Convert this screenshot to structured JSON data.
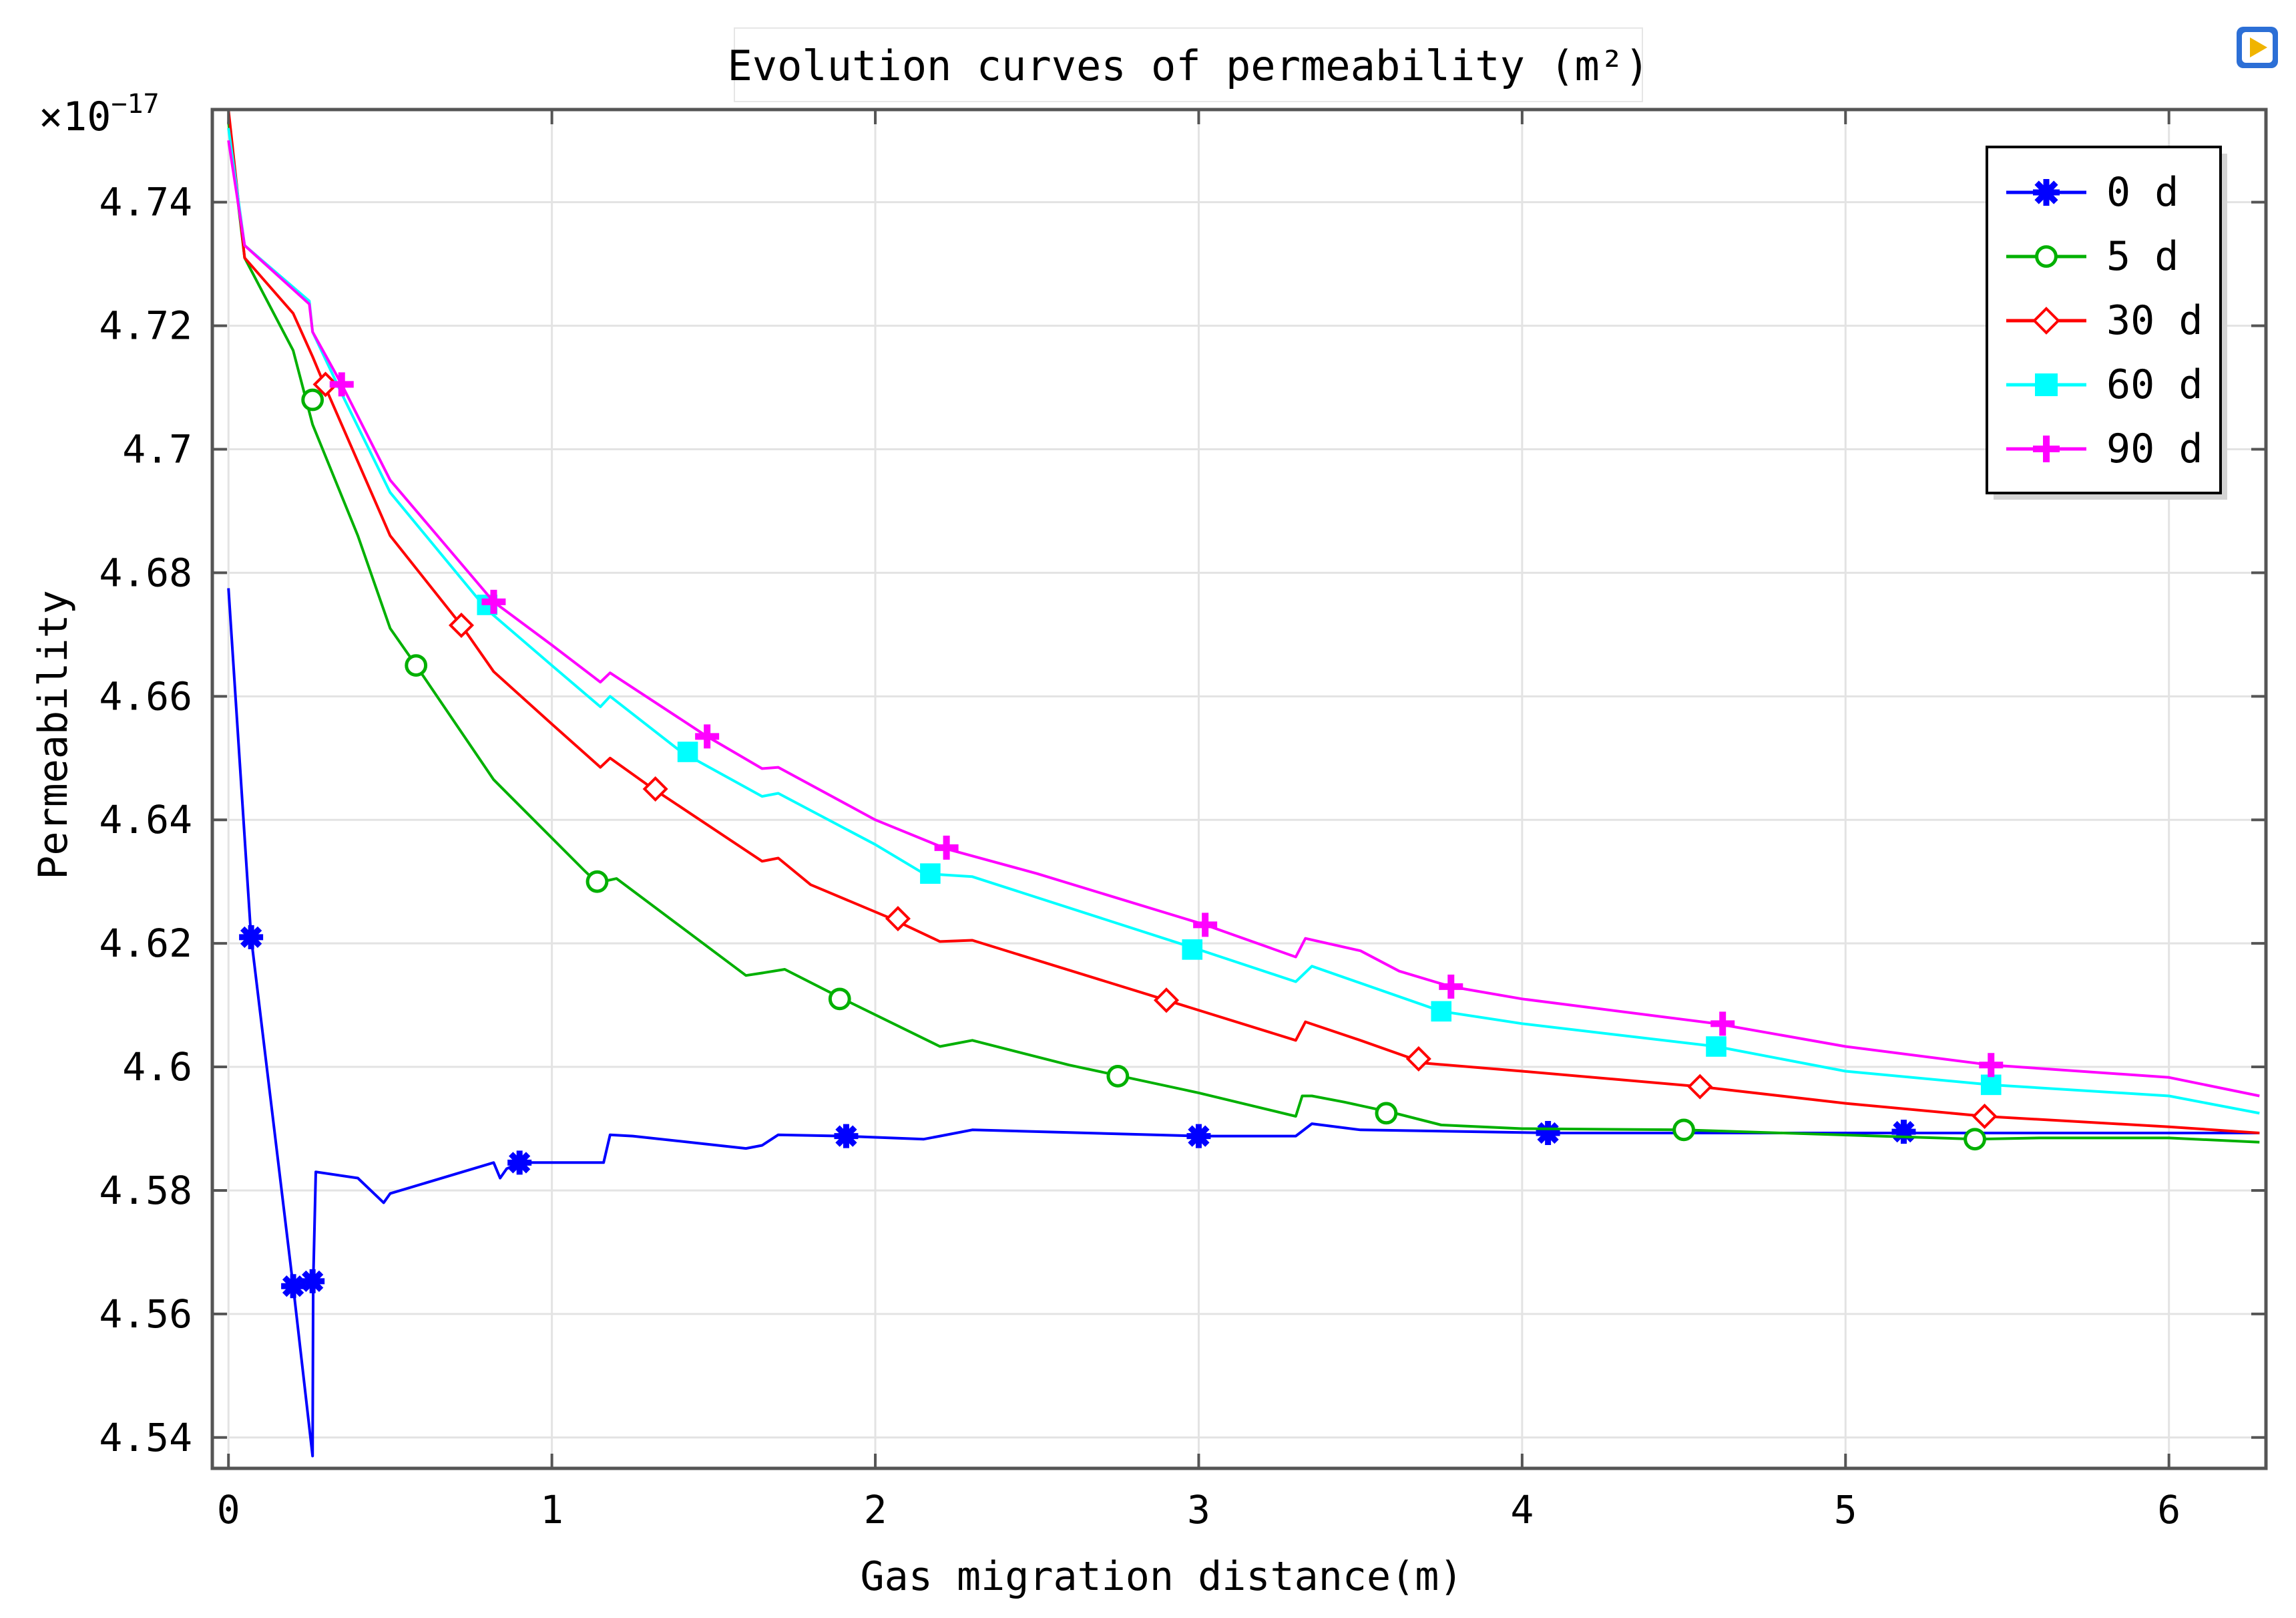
{
  "chart_data": {
    "type": "line",
    "title": "Evolution curves of permeability (m²)",
    "xlabel": "Gas migration distance(m)",
    "ylabel": "Permeability",
    "exponent_label": "×10",
    "exponent_power": "−17",
    "xlim": [
      -0.05,
      6.3
    ],
    "ylim": [
      4.535,
      4.755
    ],
    "xticks": [
      0,
      1,
      2,
      3,
      4,
      5,
      6
    ],
    "xtick_labels": [
      "0",
      "1",
      "2",
      "3",
      "4",
      "5",
      "6"
    ],
    "yticks": [
      4.54,
      4.56,
      4.58,
      4.6,
      4.62,
      4.64,
      4.66,
      4.68,
      4.7,
      4.72,
      4.74
    ],
    "ytick_labels": [
      "4.54",
      "4.56",
      "4.58",
      "4.6",
      "4.62",
      "4.64",
      "4.66",
      "4.68",
      "4.7",
      "4.72",
      "4.74"
    ],
    "grid": true,
    "legend_position": "top-right",
    "series": [
      {
        "name": "0 d",
        "color": "#0000ff",
        "marker": "asterisk",
        "x": [
          0.0,
          0.07,
          0.2,
          0.26,
          0.262,
          0.27,
          0.4,
          0.48,
          0.5,
          0.82,
          0.84,
          0.86,
          0.9,
          1.1,
          1.16,
          1.18,
          1.25,
          1.6,
          1.65,
          1.7,
          1.9,
          2.15,
          2.2,
          2.3,
          3.0,
          3.3,
          3.35,
          3.5,
          4.1,
          5.2,
          5.5,
          6.0,
          6.28
        ],
        "y": [
          4.6775,
          4.621,
          4.5645,
          4.537,
          4.565,
          4.583,
          4.582,
          4.578,
          4.5795,
          4.5845,
          4.582,
          4.5835,
          4.5845,
          4.5845,
          4.5845,
          4.589,
          4.5888,
          4.5868,
          4.5873,
          4.589,
          4.5888,
          4.5883,
          4.5888,
          4.5898,
          4.5888,
          4.5888,
          4.5908,
          4.5898,
          4.5893,
          4.5893,
          4.5893,
          4.5893,
          4.5893
        ],
        "marker_x": [
          0.07,
          0.2,
          0.26,
          0.9,
          1.91,
          3.0,
          4.08,
          5.18
        ],
        "marker_y": [
          4.621,
          4.5645,
          4.5653,
          4.5845,
          4.5888,
          4.5888,
          4.5893,
          4.5895
        ]
      },
      {
        "name": "5 d",
        "color": "#00b000",
        "marker": "circle",
        "x": [
          0.0,
          0.05,
          0.2,
          0.26,
          0.4,
          0.5,
          0.58,
          0.82,
          1.1,
          1.14,
          1.2,
          1.6,
          1.65,
          1.72,
          1.9,
          2.2,
          2.3,
          2.6,
          3.0,
          3.3,
          3.32,
          3.35,
          3.45,
          3.6,
          3.75,
          4.0,
          4.5,
          5.4,
          5.6,
          6.0,
          6.28
        ],
        "y": [
          4.753,
          4.731,
          4.716,
          4.704,
          4.686,
          4.671,
          4.665,
          4.6465,
          4.6318,
          4.6298,
          4.6305,
          4.6148,
          4.6152,
          4.6158,
          4.611,
          4.6033,
          4.6043,
          4.6003,
          4.5958,
          4.592,
          4.5953,
          4.5953,
          4.5943,
          4.5926,
          4.5906,
          4.59,
          4.5898,
          4.5883,
          4.5885,
          4.5885,
          4.5878
        ],
        "marker_x": [
          0.26,
          0.58,
          1.14,
          1.89,
          2.75,
          3.58,
          4.5,
          5.4
        ],
        "marker_y": [
          4.708,
          4.665,
          4.63,
          4.611,
          4.5985,
          4.5925,
          4.5898,
          4.5883
        ]
      },
      {
        "name": "30 d",
        "color": "#ff0000",
        "marker": "diamond",
        "x": [
          0.0,
          0.05,
          0.2,
          0.26,
          0.3,
          0.5,
          0.72,
          0.82,
          1.0,
          1.15,
          1.18,
          1.3,
          1.65,
          1.7,
          1.8,
          2.05,
          2.2,
          2.3,
          2.9,
          3.3,
          3.33,
          3.5,
          3.7,
          4.0,
          4.55,
          5.0,
          5.43,
          6.0,
          6.28
        ],
        "y": [
          4.755,
          4.731,
          4.722,
          4.715,
          4.71,
          4.686,
          4.6715,
          4.664,
          4.6555,
          4.6485,
          4.65,
          4.6455,
          4.6333,
          4.6338,
          4.6295,
          4.624,
          4.6203,
          4.6205,
          4.6108,
          4.6043,
          4.6073,
          4.6043,
          4.6006,
          4.5993,
          4.5968,
          4.5941,
          4.592,
          4.5903,
          4.5893
        ],
        "marker_x": [
          0.3,
          0.72,
          1.32,
          2.07,
          2.9,
          3.68,
          4.55,
          5.43
        ],
        "marker_y": [
          4.7105,
          4.6715,
          4.645,
          4.624,
          4.6108,
          4.6013,
          4.5968,
          4.592
        ]
      },
      {
        "name": "60 d",
        "color": "#00ffff",
        "marker": "square",
        "x": [
          0.0,
          0.05,
          0.25,
          0.26,
          0.35,
          0.5,
          0.8,
          1.0,
          1.15,
          1.18,
          1.4,
          1.65,
          1.7,
          2.0,
          2.15,
          2.3,
          3.0,
          3.3,
          3.35,
          3.75,
          4.0,
          4.6,
          5.0,
          5.45,
          6.0,
          6.28
        ],
        "y": [
          4.752,
          4.733,
          4.724,
          4.719,
          4.709,
          4.693,
          4.674,
          4.665,
          4.6583,
          4.66,
          4.651,
          4.6438,
          4.6443,
          4.636,
          4.6313,
          4.6308,
          4.619,
          4.6138,
          4.6163,
          4.609,
          4.607,
          4.6033,
          4.5993,
          4.5971,
          4.5953,
          4.5925
        ],
        "marker_x": [
          0.8,
          1.42,
          2.17,
          2.98,
          3.75,
          4.6,
          5.45
        ],
        "marker_y": [
          4.6748,
          4.651,
          4.6313,
          4.619,
          4.609,
          4.6033,
          4.5971
        ]
      },
      {
        "name": "90 d",
        "color": "#ff00ff",
        "marker": "plus",
        "x": [
          0.0,
          0.05,
          0.25,
          0.26,
          0.35,
          0.5,
          0.82,
          1.0,
          1.15,
          1.18,
          1.48,
          1.65,
          1.7,
          2.0,
          2.22,
          2.5,
          3.02,
          3.3,
          3.33,
          3.5,
          3.62,
          3.78,
          4.0,
          4.6,
          5.0,
          5.45,
          6.0,
          6.28
        ],
        "y": [
          4.75,
          4.733,
          4.7235,
          4.719,
          4.7105,
          4.695,
          4.6753,
          4.6683,
          4.6623,
          4.6638,
          4.6535,
          4.6483,
          4.6485,
          4.64,
          4.6353,
          4.6313,
          4.623,
          4.6178,
          4.6208,
          4.6188,
          4.6155,
          4.613,
          4.611,
          4.607,
          4.6033,
          4.6003,
          4.5983,
          4.5953
        ],
        "marker_x": [
          0.35,
          0.82,
          1.48,
          2.22,
          3.02,
          3.78,
          4.62,
          5.45
        ],
        "marker_y": [
          4.7105,
          4.6753,
          4.6535,
          4.6355,
          4.623,
          4.613,
          4.607,
          4.6003
        ]
      }
    ]
  }
}
